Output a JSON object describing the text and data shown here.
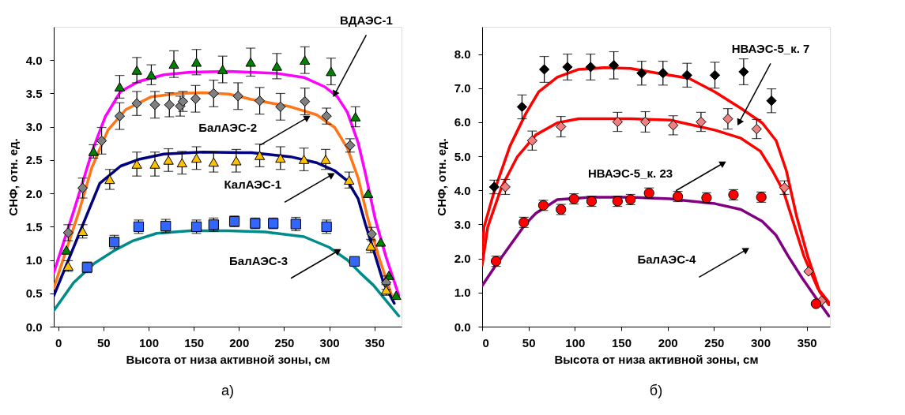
{
  "chart_data": [
    {
      "type": "line",
      "xlabel": "Высота от низа активной зоны, см",
      "ylabel": "СНФ, отн. ед.",
      "xlim": [
        -5,
        380
      ],
      "xticks": [
        0,
        50,
        100,
        150,
        200,
        250,
        300,
        350
      ],
      "ylim": [
        0,
        4.5
      ],
      "yticks": [
        {
          "value": 0,
          "label": "0.0"
        },
        0.5,
        {
          "value": 1,
          "label": "1.0"
        },
        1.5,
        {
          "value": 2,
          "label": "2.0"
        },
        2.5,
        {
          "value": 3,
          "label": "3.0"
        },
        3.5,
        {
          "value": 4,
          "label": "4.0"
        }
      ],
      "grid": false,
      "series": [
        {
          "color": "#ff00ff",
          "x": [
            -5,
            17,
            38,
            52,
            69,
            89,
            117,
            146,
            189,
            243,
            272,
            295,
            309,
            320,
            332,
            340,
            351,
            363,
            377
          ],
          "values": [
            0.81,
            1.73,
            2.65,
            3.15,
            3.53,
            3.68,
            3.78,
            3.82,
            3.83,
            3.8,
            3.74,
            3.6,
            3.45,
            3.22,
            2.76,
            2.3,
            1.61,
            1.04,
            0.47
          ]
        },
        {
          "color": "#ff7518",
          "x": [
            -5,
            23,
            37,
            55,
            75,
            103,
            132,
            160,
            189,
            214,
            257,
            286,
            306,
            320,
            332,
            343,
            355,
            369
          ],
          "values": [
            0.58,
            1.73,
            2.38,
            2.95,
            3.26,
            3.45,
            3.5,
            3.51,
            3.49,
            3.41,
            3.3,
            3.18,
            2.99,
            2.68,
            2.23,
            1.61,
            1.04,
            0.47
          ]
        },
        {
          "color": "#000080",
          "x": [
            -5,
            32,
            46,
            69,
            89,
            117,
            160,
            203,
            214,
            257,
            286,
            306,
            320,
            332,
            340,
            349,
            360,
            372
          ],
          "values": [
            0.46,
            1.69,
            2.15,
            2.41,
            2.51,
            2.59,
            2.62,
            2.61,
            2.61,
            2.55,
            2.46,
            2.34,
            2.19,
            1.92,
            1.54,
            1.15,
            0.66,
            0.35
          ]
        },
        {
          "color": "#008b8b",
          "x": [
            -5,
            17,
            40,
            63,
            83,
            109,
            146,
            189,
            229,
            272,
            300,
            320,
            334,
            349,
            363,
            377
          ],
          "values": [
            0.24,
            0.66,
            0.95,
            1.15,
            1.29,
            1.4,
            1.44,
            1.44,
            1.42,
            1.35,
            1.19,
            1.0,
            0.81,
            0.62,
            0.39,
            0.16
          ]
        },
        {
          "type": "scatter",
          "marker": "triangle",
          "color": "#008000",
          "x": [
            9,
            39,
            68,
            87,
            103,
            128,
            153,
            182,
            213,
            242,
            273,
            302,
            329,
            343,
            357,
            366,
            374
          ],
          "values": [
            1.15,
            2.63,
            3.6,
            3.85,
            3.78,
            3.94,
            3.97,
            3.86,
            3.97,
            3.91,
            4.0,
            3.83,
            3.15,
            2.0,
            1.27,
            0.77,
            0.47
          ],
          "errors": [
            null,
            0.1,
            0.17,
            0.19,
            0.15,
            0.2,
            0.19,
            0.2,
            0.21,
            0.19,
            0.2,
            0.2,
            0.15,
            null,
            null,
            null,
            null
          ]
        },
        {
          "type": "scatter",
          "marker": "diamond",
          "color": "#808080",
          "x": [
            11,
            27,
            48,
            68,
            87,
            107,
            123,
            135,
            138,
            152,
            172,
            199,
            223,
            246,
            273,
            297,
            323,
            347,
            363
          ],
          "values": [
            1.41,
            2.08,
            2.79,
            3.16,
            3.35,
            3.33,
            3.33,
            3.31,
            3.38,
            3.42,
            3.5,
            3.46,
            3.39,
            3.3,
            3.38,
            3.16,
            2.72,
            1.39,
            0.66
          ],
          "errors": [
            0.12,
            0.15,
            0.2,
            0.2,
            0.18,
            0.2,
            0.18,
            0.15,
            0.15,
            0.2,
            0.2,
            0.2,
            0.2,
            0.2,
            0.2,
            0.12,
            0.1,
            0.1,
            0.1
          ]
        },
        {
          "type": "scatter",
          "marker": "triangle",
          "color": "#ffc000",
          "x": [
            11,
            27,
            57,
            87,
            107,
            122,
            137,
            153,
            172,
            197,
            223,
            246,
            272,
            296,
            322,
            346,
            363
          ],
          "values": [
            0.91,
            1.43,
            2.21,
            2.44,
            2.44,
            2.5,
            2.46,
            2.53,
            2.47,
            2.49,
            2.57,
            2.53,
            2.51,
            2.51,
            2.2,
            1.21,
            0.55
          ],
          "errors": [
            0.08,
            0.1,
            0.15,
            0.18,
            0.18,
            0.17,
            0.17,
            0.17,
            0.15,
            0.17,
            0.17,
            0.17,
            0.17,
            0.15,
            0.12,
            0.1,
            0.08
          ]
        },
        {
          "type": "scatter",
          "marker": "square",
          "color": "#3366ff",
          "x": [
            32,
            62,
            89,
            119,
            153,
            172,
            195,
            218,
            238,
            263,
            297,
            328
          ],
          "values": [
            0.89,
            1.27,
            1.5,
            1.51,
            1.5,
            1.53,
            1.58,
            1.55,
            1.55,
            1.54,
            1.5,
            0.98
          ],
          "errors": [
            0.08,
            0.1,
            0.1,
            0.1,
            0.1,
            0.1,
            0.08,
            0.08,
            0.08,
            0.1,
            0.1,
            0.05
          ]
        }
      ],
      "annotations": [
        {
          "text": "ВДАЭС-1",
          "x": 306,
          "y": 3.49
        },
        {
          "text": "БалАЭС-2",
          "x": 276,
          "y": 3.14
        },
        {
          "text": "КалАЭС-1",
          "x": 303,
          "y": 2.28
        },
        {
          "text": "БалАЭС-3",
          "x": 310,
          "y": 1.14
        },
        "а)"
      ]
    },
    {
      "type": "line",
      "xlabel": "Высота от низа активной зоны, см",
      "ylabel": "СНФ, отн. ед.",
      "xlim": [
        0,
        375
      ],
      "xticks": [
        0,
        50,
        100,
        150,
        200,
        250,
        300,
        350
      ],
      "ylim": [
        0,
        8.8
      ],
      "yticks": [
        {
          "value": 0,
          "label": "0.0"
        },
        {
          "value": 1,
          "label": "1.0"
        },
        {
          "value": 2,
          "label": "2.0"
        },
        {
          "value": 3,
          "label": "3.0"
        },
        {
          "value": 4,
          "label": "4.0"
        },
        {
          "value": 5,
          "label": "5.0"
        },
        {
          "value": 6,
          "label": "6.0"
        },
        {
          "value": 7,
          "label": "7.0"
        },
        {
          "value": 8,
          "label": "8.0"
        }
      ],
      "grid": false,
      "series": [
        {
          "color": "#ff0000",
          "x": [
            0,
            2,
            13,
            30,
            47,
            61,
            81,
            104,
            132,
            160,
            189,
            223,
            251,
            279,
            302,
            317,
            328,
            339,
            351,
            364,
            374
          ],
          "values": [
            2.2,
            2.92,
            3.97,
            5.3,
            6.25,
            6.89,
            7.32,
            7.55,
            7.6,
            7.58,
            7.44,
            7.29,
            6.89,
            6.41,
            5.98,
            5.46,
            4.58,
            3.25,
            2.07,
            1.02,
            0.64
          ]
        },
        {
          "color": "#ff0000",
          "x": [
            0,
            6,
            21,
            38,
            58,
            81,
            104,
            160,
            203,
            223,
            251,
            279,
            300,
            313,
            325,
            336,
            347,
            362,
            374
          ],
          "values": [
            1.8,
            2.92,
            4.1,
            4.99,
            5.63,
            5.98,
            6.1,
            6.1,
            6.06,
            5.94,
            5.77,
            5.53,
            5.15,
            4.58,
            3.97,
            3.02,
            2.07,
            1.12,
            0.71
          ]
        },
        {
          "color": "#800080",
          "x": [
            0,
            13,
            30,
            47,
            58,
            81,
            117,
            160,
            203,
            209,
            251,
            279,
            302,
            317,
            330,
            345,
            359,
            374
          ],
          "values": [
            1.2,
            1.73,
            2.38,
            3.02,
            3.33,
            3.73,
            3.8,
            3.8,
            3.75,
            3.73,
            3.61,
            3.44,
            3.09,
            2.68,
            2.07,
            1.43,
            0.88,
            0.31
          ]
        },
        {
          "type": "scatter",
          "marker": "diamond",
          "color": "#000000",
          "x": [
            13,
            43,
            67,
            92,
            117,
            142,
            172,
            195,
            221,
            251,
            282,
            312
          ],
          "values": [
            4.1,
            6.45,
            7.55,
            7.62,
            7.62,
            7.67,
            7.44,
            7.44,
            7.38,
            7.38,
            7.48,
            6.63
          ],
          "errors": [
            0.2,
            0.35,
            0.38,
            0.38,
            0.38,
            0.4,
            0.35,
            0.35,
            0.35,
            0.38,
            0.38,
            0.35
          ]
        },
        {
          "type": "scatter",
          "marker": "diamond",
          "color": "#f08080",
          "x": [
            25,
            54,
            85,
            146,
            176,
            206,
            236,
            265,
            296,
            326,
            352,
            366
          ],
          "values": [
            4.1,
            5.46,
            5.87,
            6.01,
            6.01,
            5.91,
            6.01,
            6.1,
            5.8,
            4.08,
            1.62,
            0.76
          ],
          "errors": [
            0.22,
            0.28,
            0.3,
            0.28,
            0.3,
            0.28,
            0.28,
            0.3,
            0.28,
            0.2,
            null,
            null
          ]
        },
        {
          "type": "scatter",
          "marker": "circle",
          "color": "#ff0000",
          "x": [
            15,
            45,
            66,
            85,
            99,
            118,
            146,
            160,
            180,
            211,
            242,
            271,
            301,
            360
          ],
          "values": [
            1.92,
            3.06,
            3.56,
            3.44,
            3.75,
            3.68,
            3.68,
            3.73,
            3.92,
            3.82,
            3.78,
            3.87,
            3.8,
            0.67
          ],
          "errors": [
            0.15,
            0.15,
            0.15,
            0.15,
            0.15,
            0.15,
            0.15,
            0.15,
            0.15,
            0.15,
            0.15,
            0.15,
            0.15,
            null
          ]
        }
      ],
      "annotations": [
        {
          "text": "НВАЭС-5_к. 7",
          "x": 277,
          "y": 5.99
        },
        {
          "text": "НВАЭС-5_к. 23",
          "x": 260,
          "y": 4.8
        },
        {
          "text": "БалАЭС-4",
          "x": 285,
          "y": 2.26
        },
        "б)"
      ]
    }
  ]
}
